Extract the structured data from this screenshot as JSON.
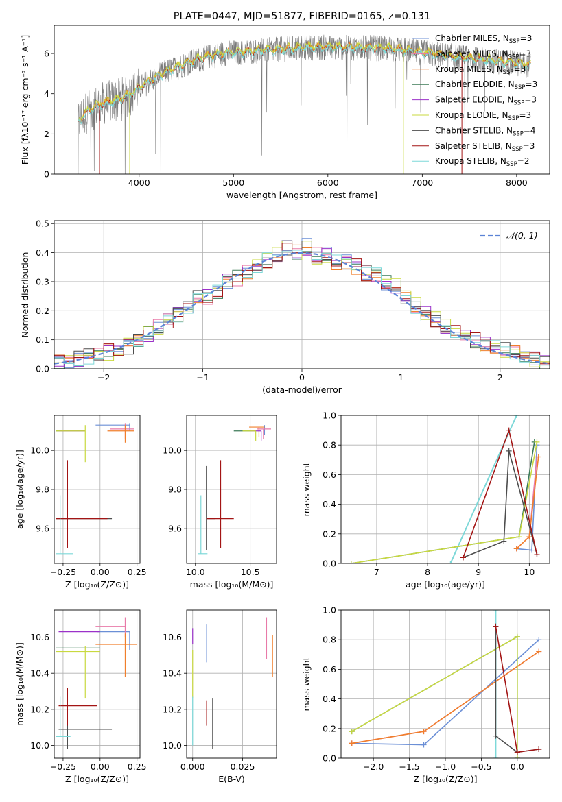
{
  "colors": {
    "Chabrier MILES": "#6b8fd6",
    "Salpeter MILES": "#e87aa8",
    "Kroupa MILES": "#f07f2c",
    "Chabrier ELODIE": "#3b7a57",
    "Salpeter ELODIE": "#9b32c9",
    "Kroupa ELODIE": "#c9d93f",
    "Chabrier STELIB": "#4d4d4d",
    "Salpeter STELIB": "#a31515",
    "Kroupa STELIB": "#7dd8d8",
    "gaussian": "#5b83d6",
    "grid": "#b0b0b0"
  },
  "chart_data": [
    {
      "id": "spectrum",
      "type": "line",
      "title": "PLATE=0447, MJD=51877, FIBERID=0165, z=0.131",
      "xlabel": "wavelength [Angstrom, rest frame]",
      "ylabel": "Flux [fλ10⁻¹⁷ erg cm⁻² s⁻¹ A⁻¹]",
      "xlim": [
        3100,
        8350
      ],
      "ylim": [
        0,
        7.4
      ],
      "xticks": [
        4000,
        5000,
        6000,
        7000,
        8000
      ],
      "yticks": [
        0,
        2,
        4,
        6
      ],
      "legend_position": "right",
      "continuum": [
        [
          3350,
          2.6
        ],
        [
          3450,
          3.1
        ],
        [
          3600,
          3.5
        ],
        [
          3800,
          3.7
        ],
        [
          3950,
          4.1
        ],
        [
          4100,
          4.6
        ],
        [
          4300,
          5.1
        ],
        [
          4500,
          5.5
        ],
        [
          4700,
          5.8
        ],
        [
          4900,
          6.0
        ],
        [
          5200,
          6.1
        ],
        [
          5500,
          6.2
        ],
        [
          5800,
          6.3
        ],
        [
          6200,
          6.3
        ],
        [
          6600,
          6.25
        ],
        [
          7000,
          6.05
        ],
        [
          7400,
          5.8
        ],
        [
          7800,
          5.6
        ],
        [
          8150,
          5.4
        ]
      ],
      "series": [
        {
          "name": "Chabrier MILES",
          "nssp": "3"
        },
        {
          "name": "Salpeter MILES",
          "nssp": "3"
        },
        {
          "name": "Kroupa MILES",
          "nssp": "3"
        },
        {
          "name": "Chabrier ELODIE",
          "nssp": "3"
        },
        {
          "name": "Salpeter ELODIE",
          "nssp": "3"
        },
        {
          "name": "Kroupa ELODIE",
          "nssp": "3"
        },
        {
          "name": "Chabrier STELIB",
          "nssp": "4"
        },
        {
          "name": "Salpeter STELIB",
          "nssp": "3"
        },
        {
          "name": "Kroupa STELIB",
          "nssp": "2"
        }
      ]
    },
    {
      "id": "residuals",
      "type": "line",
      "xlabel": "(data-model)/error",
      "ylabel": "Normed distribution",
      "xlim": [
        -2.5,
        2.5
      ],
      "ylim": [
        0,
        0.51
      ],
      "xticks": [
        -2,
        -1,
        0,
        1,
        2
      ],
      "yticks": [
        0.0,
        0.1,
        0.2,
        0.3,
        0.4,
        0.5
      ],
      "legend": "𝒩(0, 1)",
      "legend_position": "top-right",
      "grid": true,
      "bin_centers": [
        -2.45,
        -2.35,
        -2.25,
        -2.15,
        -2.05,
        -1.95,
        -1.85,
        -1.75,
        -1.65,
        -1.55,
        -1.45,
        -1.35,
        -1.25,
        -1.15,
        -1.05,
        -0.95,
        -0.85,
        -0.75,
        -0.65,
        -0.55,
        -0.45,
        -0.35,
        -0.25,
        -0.15,
        -0.05,
        0.05,
        0.15,
        0.25,
        0.35,
        0.45,
        0.55,
        0.65,
        0.75,
        0.85,
        0.95,
        1.05,
        1.15,
        1.25,
        1.35,
        1.45,
        1.55,
        1.65,
        1.75,
        1.85,
        1.95,
        2.05,
        2.15,
        2.25,
        2.35,
        2.45
      ],
      "base_hist": [
        0.022,
        0.028,
        0.035,
        0.045,
        0.055,
        0.058,
        0.07,
        0.08,
        0.1,
        0.12,
        0.14,
        0.16,
        0.19,
        0.22,
        0.24,
        0.25,
        0.27,
        0.3,
        0.31,
        0.34,
        0.35,
        0.37,
        0.39,
        0.42,
        0.4,
        0.42,
        0.39,
        0.39,
        0.37,
        0.37,
        0.35,
        0.33,
        0.32,
        0.3,
        0.29,
        0.25,
        0.22,
        0.19,
        0.17,
        0.15,
        0.13,
        0.11,
        0.1,
        0.085,
        0.075,
        0.065,
        0.055,
        0.045,
        0.035,
        0.025
      ]
    },
    {
      "id": "age-vs-Z",
      "type": "scatter",
      "xlabel": "Z [log₁₀(Z/Z⊙)]",
      "ylabel": "age  [log₁₀(age/yr)]",
      "xlim": [
        -0.31,
        0.27
      ],
      "ylim": [
        9.42,
        10.18
      ],
      "xticks": [
        -0.25,
        0.0,
        0.25
      ],
      "yticks": [
        9.6,
        9.8,
        10.0
      ],
      "grid": true,
      "points": [
        {
          "series": "Chabrier MILES",
          "x": 0.2,
          "y": 10.13,
          "xerr": [
            0.23,
            0.0
          ],
          "yerr": [
            0.03,
            0.01
          ]
        },
        {
          "series": "Salpeter MILES",
          "x": 0.17,
          "y": 10.11,
          "xerr": [
            0.1,
            0.06
          ],
          "yerr": [
            0.05,
            0.03
          ]
        },
        {
          "series": "Kroupa MILES",
          "x": 0.17,
          "y": 10.1,
          "xerr": [
            0.12,
            0.06
          ],
          "yerr": [
            0.06,
            0.03
          ]
        },
        {
          "series": "Chabrier ELODIE",
          "x": -0.1,
          "y": 10.1,
          "xerr": [
            0.2,
            0.0
          ],
          "yerr": [
            0.0,
            0.0
          ]
        },
        {
          "series": "Salpeter ELODIE",
          "x": -0.1,
          "y": 10.1,
          "xerr": [
            0.18,
            0.0
          ],
          "yerr": [
            0.0,
            0.0
          ]
        },
        {
          "series": "Kroupa ELODIE",
          "x": -0.1,
          "y": 10.1,
          "xerr": [
            0.2,
            0.0
          ],
          "yerr": [
            0.16,
            0.03
          ]
        },
        {
          "series": "Chabrier STELIB",
          "x": -0.22,
          "y": 9.65,
          "xerr": [
            0.08,
            0.3
          ],
          "yerr": [
            0.13,
            0.27
          ]
        },
        {
          "series": "Salpeter STELIB",
          "x": -0.22,
          "y": 9.65,
          "xerr": [
            0.08,
            0.27
          ],
          "yerr": [
            0.15,
            0.3
          ]
        },
        {
          "series": "Kroupa STELIB",
          "x": -0.27,
          "y": 9.47,
          "xerr": [
            0.03,
            0.09
          ],
          "yerr": [
            0.0,
            0.3
          ]
        }
      ]
    },
    {
      "id": "age-vs-mass",
      "type": "scatter",
      "xlabel": "mass [log₁₀(M/M⊙)]",
      "ylabel": "",
      "xlim": [
        9.92,
        10.74
      ],
      "ylim": [
        9.42,
        10.18
      ],
      "xticks": [
        10.0,
        10.5
      ],
      "yticks": [
        9.6,
        9.8,
        10.0
      ],
      "grid": true,
      "points": [
        {
          "series": "Chabrier MILES",
          "x": 10.63,
          "y": 10.13,
          "xerr": [
            0.0,
            0.0
          ],
          "yerr": [
            0.05,
            0.0
          ]
        },
        {
          "series": "Salpeter MILES",
          "x": 10.62,
          "y": 10.11,
          "xerr": [
            0.06,
            0.07
          ],
          "yerr": [
            0.05,
            0.0
          ]
        },
        {
          "series": "Kroupa MILES",
          "x": 10.58,
          "y": 10.12,
          "xerr": [
            0.09,
            0.05
          ],
          "yerr": [
            0.05,
            0.0
          ]
        },
        {
          "series": "Chabrier ELODIE",
          "x": 10.55,
          "y": 10.1,
          "xerr": [
            0.2,
            0.0
          ],
          "yerr": [
            0.0,
            0.0
          ]
        },
        {
          "series": "Salpeter ELODIE",
          "x": 10.6,
          "y": 10.1,
          "xerr": [
            0.1,
            0.0
          ],
          "yerr": [
            0.05,
            0.0
          ]
        },
        {
          "series": "Kroupa ELODIE",
          "x": 10.55,
          "y": 10.1,
          "xerr": [
            0.12,
            0.0
          ],
          "yerr": [
            0.05,
            0.0
          ]
        },
        {
          "series": "Chabrier STELIB",
          "x": 10.1,
          "y": 9.65,
          "xerr": [
            0.0,
            0.08
          ],
          "yerr": [
            0.16,
            0.27
          ]
        },
        {
          "series": "Salpeter STELIB",
          "x": 10.23,
          "y": 9.65,
          "xerr": [
            0.13,
            0.12
          ],
          "yerr": [
            0.15,
            0.3
          ]
        },
        {
          "series": "Kroupa STELIB",
          "x": 10.05,
          "y": 9.47,
          "xerr": [
            0.03,
            0.06
          ],
          "yerr": [
            0.0,
            0.3
          ]
        }
      ]
    },
    {
      "id": "weight-vs-age",
      "type": "line",
      "xlabel": "age  [log₁₀(age/yr)]",
      "ylabel": "mass weight",
      "xlim": [
        6.3,
        10.4
      ],
      "ylim": [
        0,
        1.0
      ],
      "xticks": [
        7,
        8,
        9,
        10
      ],
      "yticks": [
        0.0,
        0.2,
        0.4,
        0.6,
        0.8,
        1.0
      ],
      "grid": true,
      "series": [
        {
          "name": "Kroupa STELIB",
          "x": [
            8.45,
            9.75
          ],
          "y": [
            0.0,
            1.0
          ]
        },
        {
          "name": "Chabrier MILES",
          "x": [
            9.75,
            10.05,
            10.15
          ],
          "y": [
            0.1,
            0.09,
            0.8
          ]
        },
        {
          "name": "Salpeter MILES",
          "x": [
            9.75,
            10.0,
            10.15
          ],
          "y": [
            0.1,
            0.18,
            0.72
          ]
        },
        {
          "name": "Kroupa MILES",
          "x": [
            9.75,
            10.0,
            10.18
          ],
          "y": [
            0.1,
            0.18,
            0.72
          ]
        },
        {
          "name": "Chabrier ELODIE",
          "x": [
            6.5,
            9.8,
            10.1
          ],
          "y": [
            0.0,
            0.18,
            0.82
          ]
        },
        {
          "name": "Kroupa ELODIE",
          "x": [
            6.5,
            9.8,
            10.15
          ],
          "y": [
            0.0,
            0.18,
            0.82
          ]
        },
        {
          "name": "Chabrier STELIB",
          "x": [
            8.7,
            9.5,
            9.6,
            10.15
          ],
          "y": [
            0.04,
            0.15,
            0.76,
            0.06
          ]
        },
        {
          "name": "Salpeter STELIB",
          "x": [
            8.7,
            9.6,
            10.15
          ],
          "y": [
            0.04,
            0.9,
            0.06
          ]
        }
      ]
    },
    {
      "id": "mass-vs-Z",
      "type": "scatter",
      "xlabel": "Z [log₁₀(Z/Z⊙)]",
      "ylabel": "mass [log₁₀(M/M⊙)]",
      "xlim": [
        -0.31,
        0.27
      ],
      "ylim": [
        9.93,
        10.75
      ],
      "xticks": [
        -0.25,
        0.0,
        0.25
      ],
      "yticks": [
        10.0,
        10.2,
        10.4,
        10.6
      ],
      "grid": true,
      "points": [
        {
          "series": "Chabrier MILES",
          "x": 0.2,
          "y": 10.63,
          "xerr": [
            0.22,
            0.0
          ],
          "yerr": [
            0.1,
            0.0
          ]
        },
        {
          "series": "Salpeter MILES",
          "x": 0.17,
          "y": 10.66,
          "xerr": [
            0.2,
            0.0
          ],
          "yerr": [
            0.06,
            0.05
          ]
        },
        {
          "series": "Kroupa MILES",
          "x": 0.17,
          "y": 10.56,
          "xerr": [
            0.2,
            0.08
          ],
          "yerr": [
            0.18,
            0.06
          ]
        },
        {
          "series": "Chabrier ELODIE",
          "x": -0.1,
          "y": 10.54,
          "xerr": [
            0.2,
            0.1
          ],
          "yerr": [
            0.0,
            0.0
          ]
        },
        {
          "series": "Salpeter ELODIE",
          "x": -0.1,
          "y": 10.63,
          "xerr": [
            0.18,
            0.1
          ],
          "yerr": [
            0.0,
            0.0
          ]
        },
        {
          "series": "Kroupa ELODIE",
          "x": -0.1,
          "y": 10.52,
          "xerr": [
            0.2,
            0.1
          ],
          "yerr": [
            0.26,
            0.03
          ]
        },
        {
          "series": "Chabrier STELIB",
          "x": -0.22,
          "y": 10.09,
          "xerr": [
            0.06,
            0.3
          ],
          "yerr": [
            0.11,
            0.13
          ]
        },
        {
          "series": "Salpeter STELIB",
          "x": -0.22,
          "y": 10.22,
          "xerr": [
            0.06,
            0.2
          ],
          "yerr": [
            0.11,
            0.1
          ]
        },
        {
          "series": "Kroupa STELIB",
          "x": -0.27,
          "y": 10.05,
          "xerr": [
            0.03,
            0.07
          ],
          "yerr": [
            0.0,
            0.22
          ]
        }
      ]
    },
    {
      "id": "mass-vs-EBV",
      "type": "scatter",
      "xlabel": "E(B-V)",
      "ylabel": "",
      "xlim": [
        -0.003,
        0.042
      ],
      "ylim": [
        9.93,
        10.75
      ],
      "xticks": [
        0.0,
        0.025
      ],
      "yticks": [
        10.0,
        10.2,
        10.4,
        10.6
      ],
      "grid": true,
      "points": [
        {
          "series": "Chabrier MILES",
          "x": 0.007,
          "y": 10.58,
          "yerr": [
            0.12,
            0.09
          ]
        },
        {
          "series": "Salpeter MILES",
          "x": 0.037,
          "y": 10.6,
          "yerr": [
            0.12,
            0.11
          ]
        },
        {
          "series": "Kroupa MILES",
          "x": 0.04,
          "y": 10.5,
          "yerr": [
            0.12,
            0.11
          ]
        },
        {
          "series": "Salpeter ELODIE",
          "x": 0.0,
          "y": 10.6,
          "yerr": [
            0.04,
            0.05
          ]
        },
        {
          "series": "Kroupa ELODIE",
          "x": 0.0,
          "y": 10.4,
          "yerr": [
            0.14,
            0.13
          ]
        },
        {
          "series": "Chabrier STELIB",
          "x": 0.01,
          "y": 10.09,
          "yerr": [
            0.11,
            0.17
          ]
        },
        {
          "series": "Salpeter STELIB",
          "x": 0.007,
          "y": 10.18,
          "yerr": [
            0.07,
            0.07
          ]
        },
        {
          "series": "Kroupa STELIB",
          "x": 0.0,
          "y": 10.1,
          "yerr": [
            0.1,
            0.17
          ]
        }
      ]
    },
    {
      "id": "weight-vs-Z",
      "type": "line",
      "xlabel": "Z [log₁₀(Z/Z⊙)]",
      "ylabel": "mass weight",
      "xlim": [
        -2.45,
        0.45
      ],
      "ylim": [
        0,
        1.0
      ],
      "xticks": [
        -2.0,
        -1.5,
        -1.0,
        -0.5,
        0.0
      ],
      "yticks": [
        0.0,
        0.2,
        0.4,
        0.6,
        0.8,
        1.0
      ],
      "grid": true,
      "series": [
        {
          "name": "Kroupa STELIB",
          "x": [
            -0.3,
            -0.3
          ],
          "y": [
            0.0,
            1.0
          ]
        },
        {
          "name": "Chabrier MILES",
          "x": [
            -2.3,
            -1.3,
            0.3
          ],
          "y": [
            0.1,
            0.09,
            0.8
          ]
        },
        {
          "name": "Salpeter MILES",
          "x": [
            -2.3,
            -1.3,
            0.3
          ],
          "y": [
            0.1,
            0.18,
            0.72
          ]
        },
        {
          "name": "Kroupa MILES",
          "x": [
            -2.3,
            -1.3,
            0.3
          ],
          "y": [
            0.1,
            0.18,
            0.72
          ]
        },
        {
          "name": "Chabrier ELODIE",
          "x": [
            -2.3,
            0.0,
            0.0
          ],
          "y": [
            0.18,
            0.82,
            0.0
          ]
        },
        {
          "name": "Kroupa ELODIE",
          "x": [
            -2.3,
            0.0,
            0.0
          ],
          "y": [
            0.18,
            0.82,
            0.0
          ]
        },
        {
          "name": "Chabrier STELIB",
          "x": [
            -0.3,
            -0.3,
            0.0,
            0.3
          ],
          "y": [
            0.89,
            0.15,
            0.04,
            0.06
          ]
        },
        {
          "name": "Salpeter STELIB",
          "x": [
            -0.3,
            0.0,
            0.3
          ],
          "y": [
            0.89,
            0.04,
            0.06
          ]
        }
      ]
    }
  ]
}
